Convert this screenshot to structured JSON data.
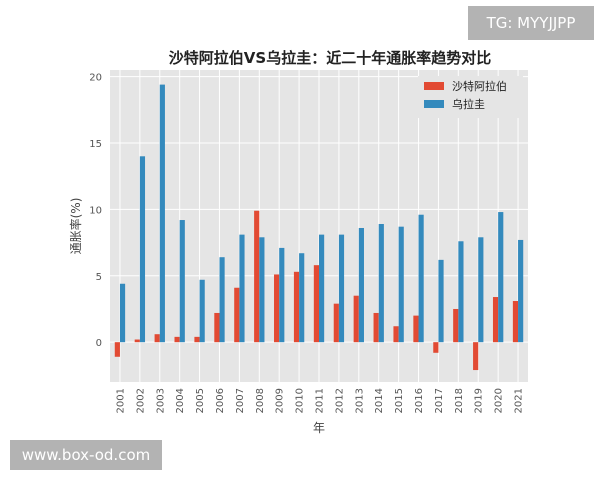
{
  "watermarks": {
    "top": "TG: MYYJJPP",
    "bottom": "www.box-od.com"
  },
  "chart_data": {
    "type": "bar",
    "title": "沙特阿拉伯VS乌拉圭：近二十年通胀率趋势对比",
    "xlabel": "年",
    "ylabel": "通胀率(%)",
    "ylim": [
      -3,
      20.5
    ],
    "yticks": [
      0,
      5,
      10,
      15,
      20
    ],
    "grid": true,
    "legend_position": "top-right",
    "categories": [
      "2001",
      "2002",
      "2003",
      "2004",
      "2005",
      "2006",
      "2007",
      "2008",
      "2009",
      "2010",
      "2011",
      "2012",
      "2013",
      "2014",
      "2015",
      "2016",
      "2017",
      "2018",
      "2019",
      "2020",
      "2021"
    ],
    "series": [
      {
        "name": "沙特阿拉伯",
        "color": "#e24a33",
        "values": [
          -1.1,
          0.2,
          0.6,
          0.4,
          0.4,
          2.2,
          4.1,
          9.9,
          5.1,
          5.3,
          5.8,
          2.9,
          3.5,
          2.2,
          1.2,
          2.0,
          -0.8,
          2.5,
          -2.1,
          3.4,
          3.1
        ]
      },
      {
        "name": "乌拉圭",
        "color": "#348abd",
        "values": [
          4.4,
          14.0,
          19.4,
          9.2,
          4.7,
          6.4,
          8.1,
          7.9,
          7.1,
          6.7,
          8.1,
          8.1,
          8.6,
          8.9,
          8.7,
          9.6,
          6.2,
          7.6,
          7.9,
          9.8,
          7.7
        ]
      }
    ]
  }
}
